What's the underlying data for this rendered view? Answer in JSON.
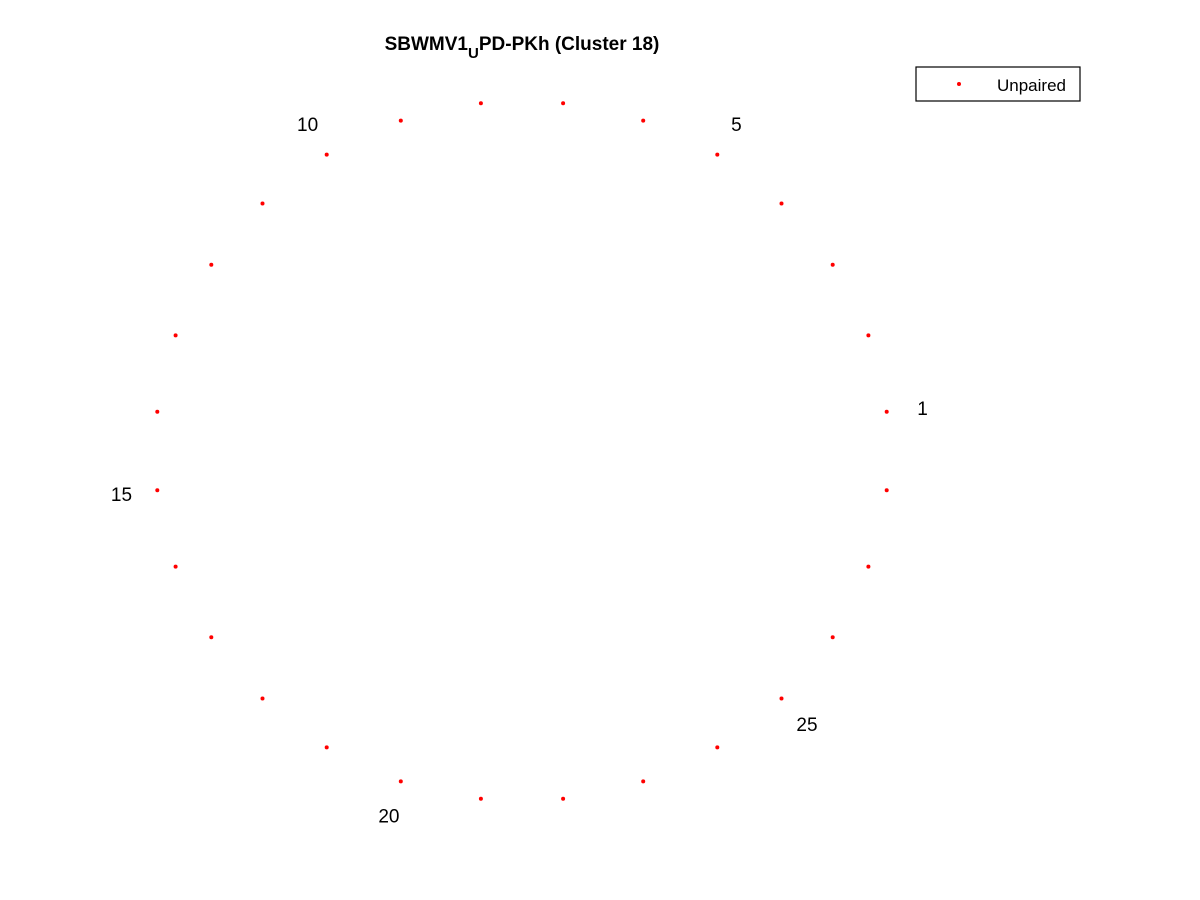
{
  "chart_data": {
    "type": "scatter",
    "title": {
      "main": "SBWMV1",
      "subscript": "U",
      "rest": "PD-PKh (Cluster 18)"
    },
    "series": [
      {
        "name": "Unpaired",
        "color": "#ff0000",
        "marker": "dot",
        "count": 28
      }
    ],
    "index_labels": [
      {
        "index": 1,
        "text": "1"
      },
      {
        "index": 5,
        "text": "5"
      },
      {
        "index": 10,
        "text": "10"
      },
      {
        "index": 15,
        "text": "15"
      },
      {
        "index": 20,
        "text": "20"
      },
      {
        "index": 25,
        "text": "25"
      }
    ],
    "legend": {
      "position": "top-right",
      "labels": [
        "Unpaired"
      ]
    },
    "grid": false,
    "axes_visible": false
  }
}
